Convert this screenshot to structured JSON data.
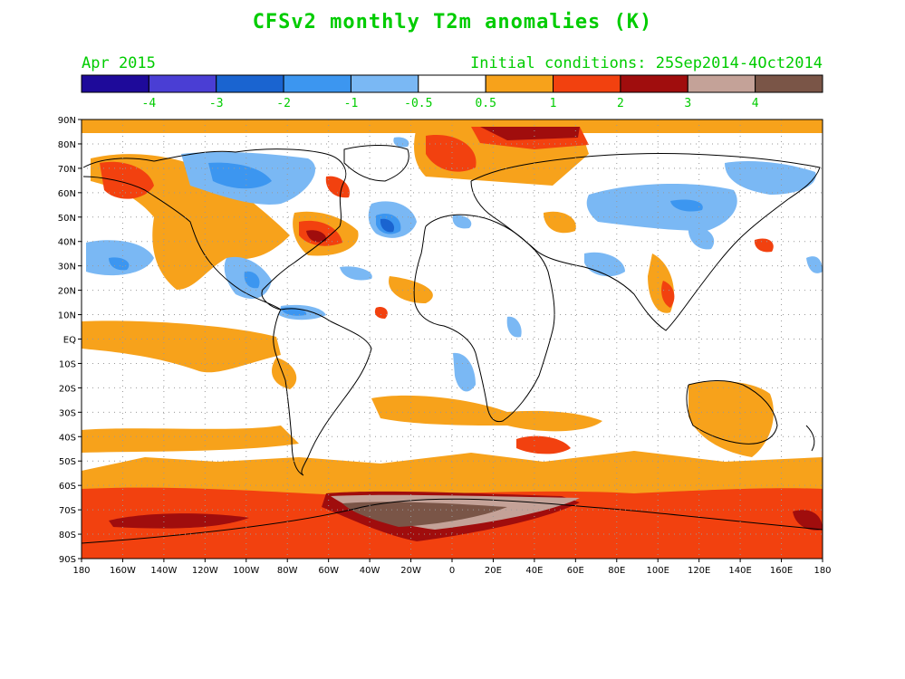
{
  "title": "CFSv2 monthly T2m anomalies (K)",
  "valid_month": "Apr 2015",
  "initial_conditions": "Initial conditions: 25Sep2014-4Oct2014",
  "legend": {
    "bins": [
      {
        "color": "#1e0a9a"
      },
      {
        "color": "#4a3ed4"
      },
      {
        "color": "#1a64d0"
      },
      {
        "color": "#3c96f0"
      },
      {
        "color": "#7ab8f4"
      },
      {
        "color": "#ffffff"
      },
      {
        "color": "#f7a21b"
      },
      {
        "color": "#f2410f"
      },
      {
        "color": "#a00d0d"
      },
      {
        "color": "#c4a298"
      },
      {
        "color": "#7a5547"
      }
    ],
    "labels": [
      "-4",
      "-3",
      "-2",
      "-1",
      "-0.5",
      "0.5",
      "1",
      "2",
      "3",
      "4"
    ],
    "label_color": "#00cc00"
  },
  "axes": {
    "lat_labels": [
      "90N",
      "80N",
      "70N",
      "60N",
      "50N",
      "40N",
      "30N",
      "20N",
      "10N",
      "EQ",
      "10S",
      "20S",
      "30S",
      "40S",
      "50S",
      "60S",
      "70S",
      "80S",
      "90S"
    ],
    "lon_labels": [
      "180",
      "160W",
      "140W",
      "120W",
      "100W",
      "80W",
      "60W",
      "40W",
      "20W",
      "0",
      "20E",
      "40E",
      "60E",
      "80E",
      "100E",
      "120E",
      "140E",
      "160E",
      "180"
    ],
    "lon_range": [
      -180,
      180
    ],
    "lat_range": [
      -90,
      90
    ],
    "grid": "dotted"
  },
  "colors": {
    "text": "#00cc00",
    "land_outline": "#000000",
    "warm_1": "#f7a21b",
    "warm_2": "#f2410f",
    "warm_3": "#a00d0d",
    "warm_4": "#c4a298",
    "warm_5": "#7a5547",
    "cool_1": "#7ab8f4",
    "cool_2": "#3c96f0",
    "cool_3": "#1a64d0"
  }
}
